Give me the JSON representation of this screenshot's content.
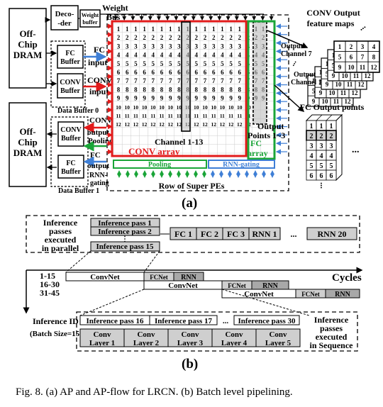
{
  "part_a": {
    "dram_top": [
      "Off-",
      "Chip",
      "DRAM"
    ],
    "dram_bottom": [
      "Off-",
      "Chip",
      "DRAM"
    ],
    "decoder": [
      "Deco-",
      "-der"
    ],
    "weight_buffer": [
      "Weight",
      "buffer"
    ],
    "weight_bus": [
      "Weight",
      "Bus"
    ],
    "fc_buffer": [
      "FC",
      "Buffer"
    ],
    "conv_buffer": [
      "CONV",
      "Buffer"
    ],
    "fc_input": [
      "FC",
      "input"
    ],
    "conv_input": [
      "CONV",
      "input"
    ],
    "data_buffer_0": "Data Buffer 0",
    "data_buffer_1": "Data Buffer 1",
    "conv_output": [
      "CONV",
      "output"
    ],
    "pooling_label": "Pooling",
    "fc_output": [
      "FC",
      "output"
    ],
    "rnn_gating_side": [
      "RNN-",
      "gating"
    ],
    "channel_label": "Channel 1-13",
    "conv_array": "CONV array",
    "output_points": [
      "Output",
      "Points 1~3"
    ],
    "fc_array": [
      "FC",
      "array"
    ],
    "pooling_bar": "Pooling",
    "rnn_bar": "RNN-gating",
    "row_label": "Row of Super PEs",
    "conv_feature_title": [
      "CONV Output",
      "feature maps"
    ],
    "output_channel_7": [
      "Output",
      "Channel 7"
    ],
    "output_channel_1": [
      "Output",
      "Channel 1"
    ],
    "fc_points_title": "FC Output points",
    "grid_rows": [
      [
        "1",
        "1",
        "1",
        "1",
        "1",
        "1",
        "1",
        "1",
        "1",
        "1",
        "1",
        "1",
        "1",
        "1",
        "1",
        "1"
      ],
      [
        "2",
        "2",
        "2",
        "2",
        "2",
        "2",
        "2",
        "2",
        "2",
        "2",
        "2",
        "2",
        "2",
        "2",
        "2",
        "2"
      ],
      [
        "3",
        "3",
        "3",
        "3",
        "3",
        "3",
        "3",
        "3",
        "3",
        "3",
        "3",
        "3",
        "3",
        "3",
        "3",
        "3"
      ],
      [
        "4",
        "4",
        "4",
        "4",
        "4",
        "4",
        "4",
        "4",
        "4",
        "4",
        "4",
        "4",
        "4",
        "4",
        "4",
        "4"
      ],
      [
        "5",
        "5",
        "5",
        "5",
        "5",
        "5",
        "5",
        "5",
        "5",
        "5",
        "5",
        "5",
        "5",
        "5",
        "5",
        "5"
      ],
      [
        "6",
        "6",
        "6",
        "6",
        "6",
        "6",
        "6",
        "6",
        "6",
        "6",
        "6",
        "6",
        "6",
        "6",
        "6",
        "6"
      ],
      [
        "7",
        "7",
        "7",
        "7",
        "7",
        "7",
        "7",
        "7",
        "7",
        "7",
        "7",
        "7",
        "7",
        "7",
        "7",
        "7"
      ],
      [
        "8",
        "8",
        "8",
        "8",
        "8",
        "8",
        "8",
        "8",
        "8",
        "8",
        "8",
        "8",
        "8",
        "8",
        "8",
        "8"
      ],
      [
        "9",
        "9",
        "9",
        "9",
        "9",
        "9",
        "9",
        "9",
        "9",
        "9",
        "9",
        "9",
        "9",
        "9",
        "9",
        "9"
      ],
      [
        "10",
        "10",
        "10",
        "10",
        "10",
        "10",
        "10",
        "10",
        "10",
        "10",
        "10",
        "10",
        "10",
        "10",
        "10",
        "10"
      ],
      [
        "11",
        "11",
        "11",
        "11",
        "11",
        "11",
        "11",
        "11",
        "11",
        "11",
        "11",
        "11",
        "11",
        "11",
        "11",
        "11"
      ],
      [
        "12",
        "12",
        "12",
        "12",
        "12",
        "12",
        "12",
        "12",
        "12",
        "12",
        "12",
        "12",
        "12",
        "12",
        "12",
        "12"
      ]
    ],
    "fmap_cells": [
      "1",
      "2",
      "3",
      "4",
      "5",
      "6",
      "7",
      "8",
      "9",
      "10",
      "11",
      "12"
    ],
    "fc_cube_rows": [
      "1",
      "2",
      "3",
      "4",
      "5",
      "6"
    ],
    "ellipsis": "...",
    "label": "(a)"
  },
  "part_b": {
    "parallel_note": [
      "Inference",
      "passes",
      "executed",
      "in parallel"
    ],
    "passes_parallel": [
      "Inference pass 1",
      "Inference pass 2",
      "Inference pass 15"
    ],
    "fc_rnn_blocks": [
      "FC 1",
      "FC 2",
      "FC 3",
      "RNN 1",
      "...",
      "RNN 20"
    ],
    "row_labels": [
      "1-15",
      "16-30",
      "31-45"
    ],
    "convnet": "ConvNet",
    "fcnet": "FCNet",
    "rnn": "RNN",
    "cycles": "Cycles",
    "inference_id": "Inference ID",
    "batch_size": "(Batch Size=15)",
    "seq_passes": [
      "Inference pass 16",
      "Inference pass 17",
      "...",
      "Inference pass 30"
    ],
    "conv_layers": [
      [
        "Conv",
        "Layer 1"
      ],
      [
        "Conv",
        "Layer 2"
      ],
      [
        "Conv",
        "Layer 3"
      ],
      [
        "Conv",
        "Layer 4"
      ],
      [
        "Conv",
        "Layer 5"
      ]
    ],
    "sequence_note": [
      "Inference",
      "passes",
      "executed",
      "in Sequence"
    ],
    "label": "(b)"
  },
  "caption": "Fig. 8.   (a) AP and AP-flow for LRCN. (b) Batch level pipelining.",
  "colors": {
    "conv": "#e21b1b",
    "fc": "#1aa538",
    "blue": "#3f7fd6",
    "gray": "#cfcfcf",
    "darkgray": "#a8a8a8"
  }
}
